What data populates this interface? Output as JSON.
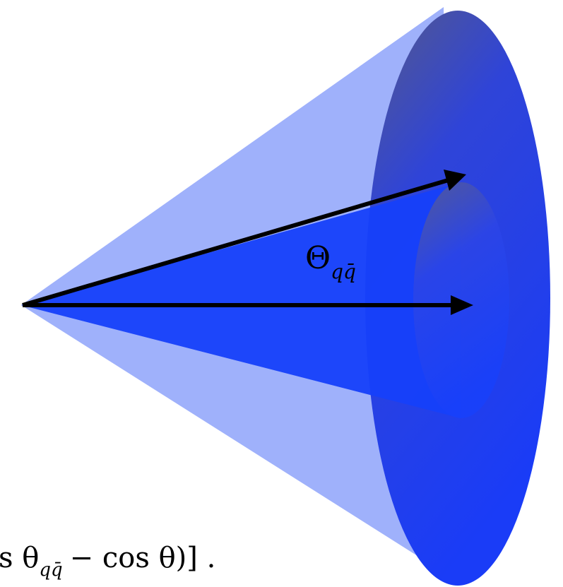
{
  "label": {
    "symbol": "Θ",
    "subscript": "qq̄"
  },
  "formula": {
    "lead": "s θ",
    "subscript": "qq̄",
    "tail": "− cos θ)]  ."
  }
}
